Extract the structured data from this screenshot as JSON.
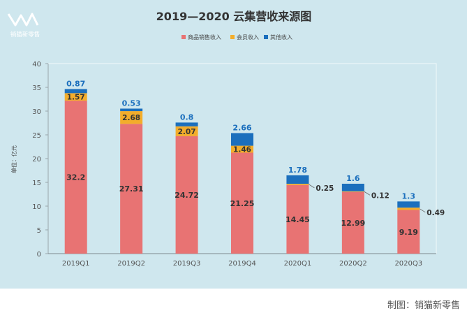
{
  "brand": {
    "logo_text": "销猫新零售"
  },
  "footer": {
    "caption": "制图：销猫新零售"
  },
  "colors": {
    "background": "#cfe7ee",
    "goods": "#e87373",
    "membership": "#f3ad2b",
    "other": "#1b6fbd",
    "axis": "#7d8a8f",
    "title": "#333333"
  },
  "chart_data": {
    "type": "bar",
    "stacked": true,
    "title": "2019—2020 云集营收来源图",
    "ylabel": "单位：亿元",
    "xlabel": "",
    "ylim": [
      0,
      40
    ],
    "yticks": [
      0,
      5,
      10,
      15,
      20,
      25,
      30,
      35,
      40
    ],
    "legend_position": "top-center",
    "grid": false,
    "categories": [
      "2019Q1",
      "2019Q2",
      "2019Q3",
      "2019Q4",
      "2020Q1",
      "2020Q2",
      "2020Q3"
    ],
    "series": [
      {
        "name": "商品销售收入",
        "values": [
          32.2,
          27.31,
          24.72,
          21.25,
          14.45,
          12.99,
          9.19
        ]
      },
      {
        "name": "会员收入",
        "values": [
          1.57,
          2.68,
          2.07,
          1.46,
          0.25,
          0.12,
          0.49
        ]
      },
      {
        "name": "其他收入",
        "values": [
          0.87,
          0.53,
          0.8,
          2.66,
          1.78,
          1.6,
          1.3
        ]
      }
    ],
    "data_labels": {
      "goods": [
        "32.2",
        "27.31",
        "24.72",
        "21.25",
        "14.45",
        "12.99",
        "9.19"
      ],
      "membership": [
        "1.57",
        "2.68",
        "2.07",
        "1.46",
        "0.25",
        "0.12",
        "0.49"
      ],
      "other": [
        "0.87",
        "0.53",
        "0.8",
        "2.66",
        "1.78",
        "1.6",
        "1.3"
      ]
    }
  }
}
